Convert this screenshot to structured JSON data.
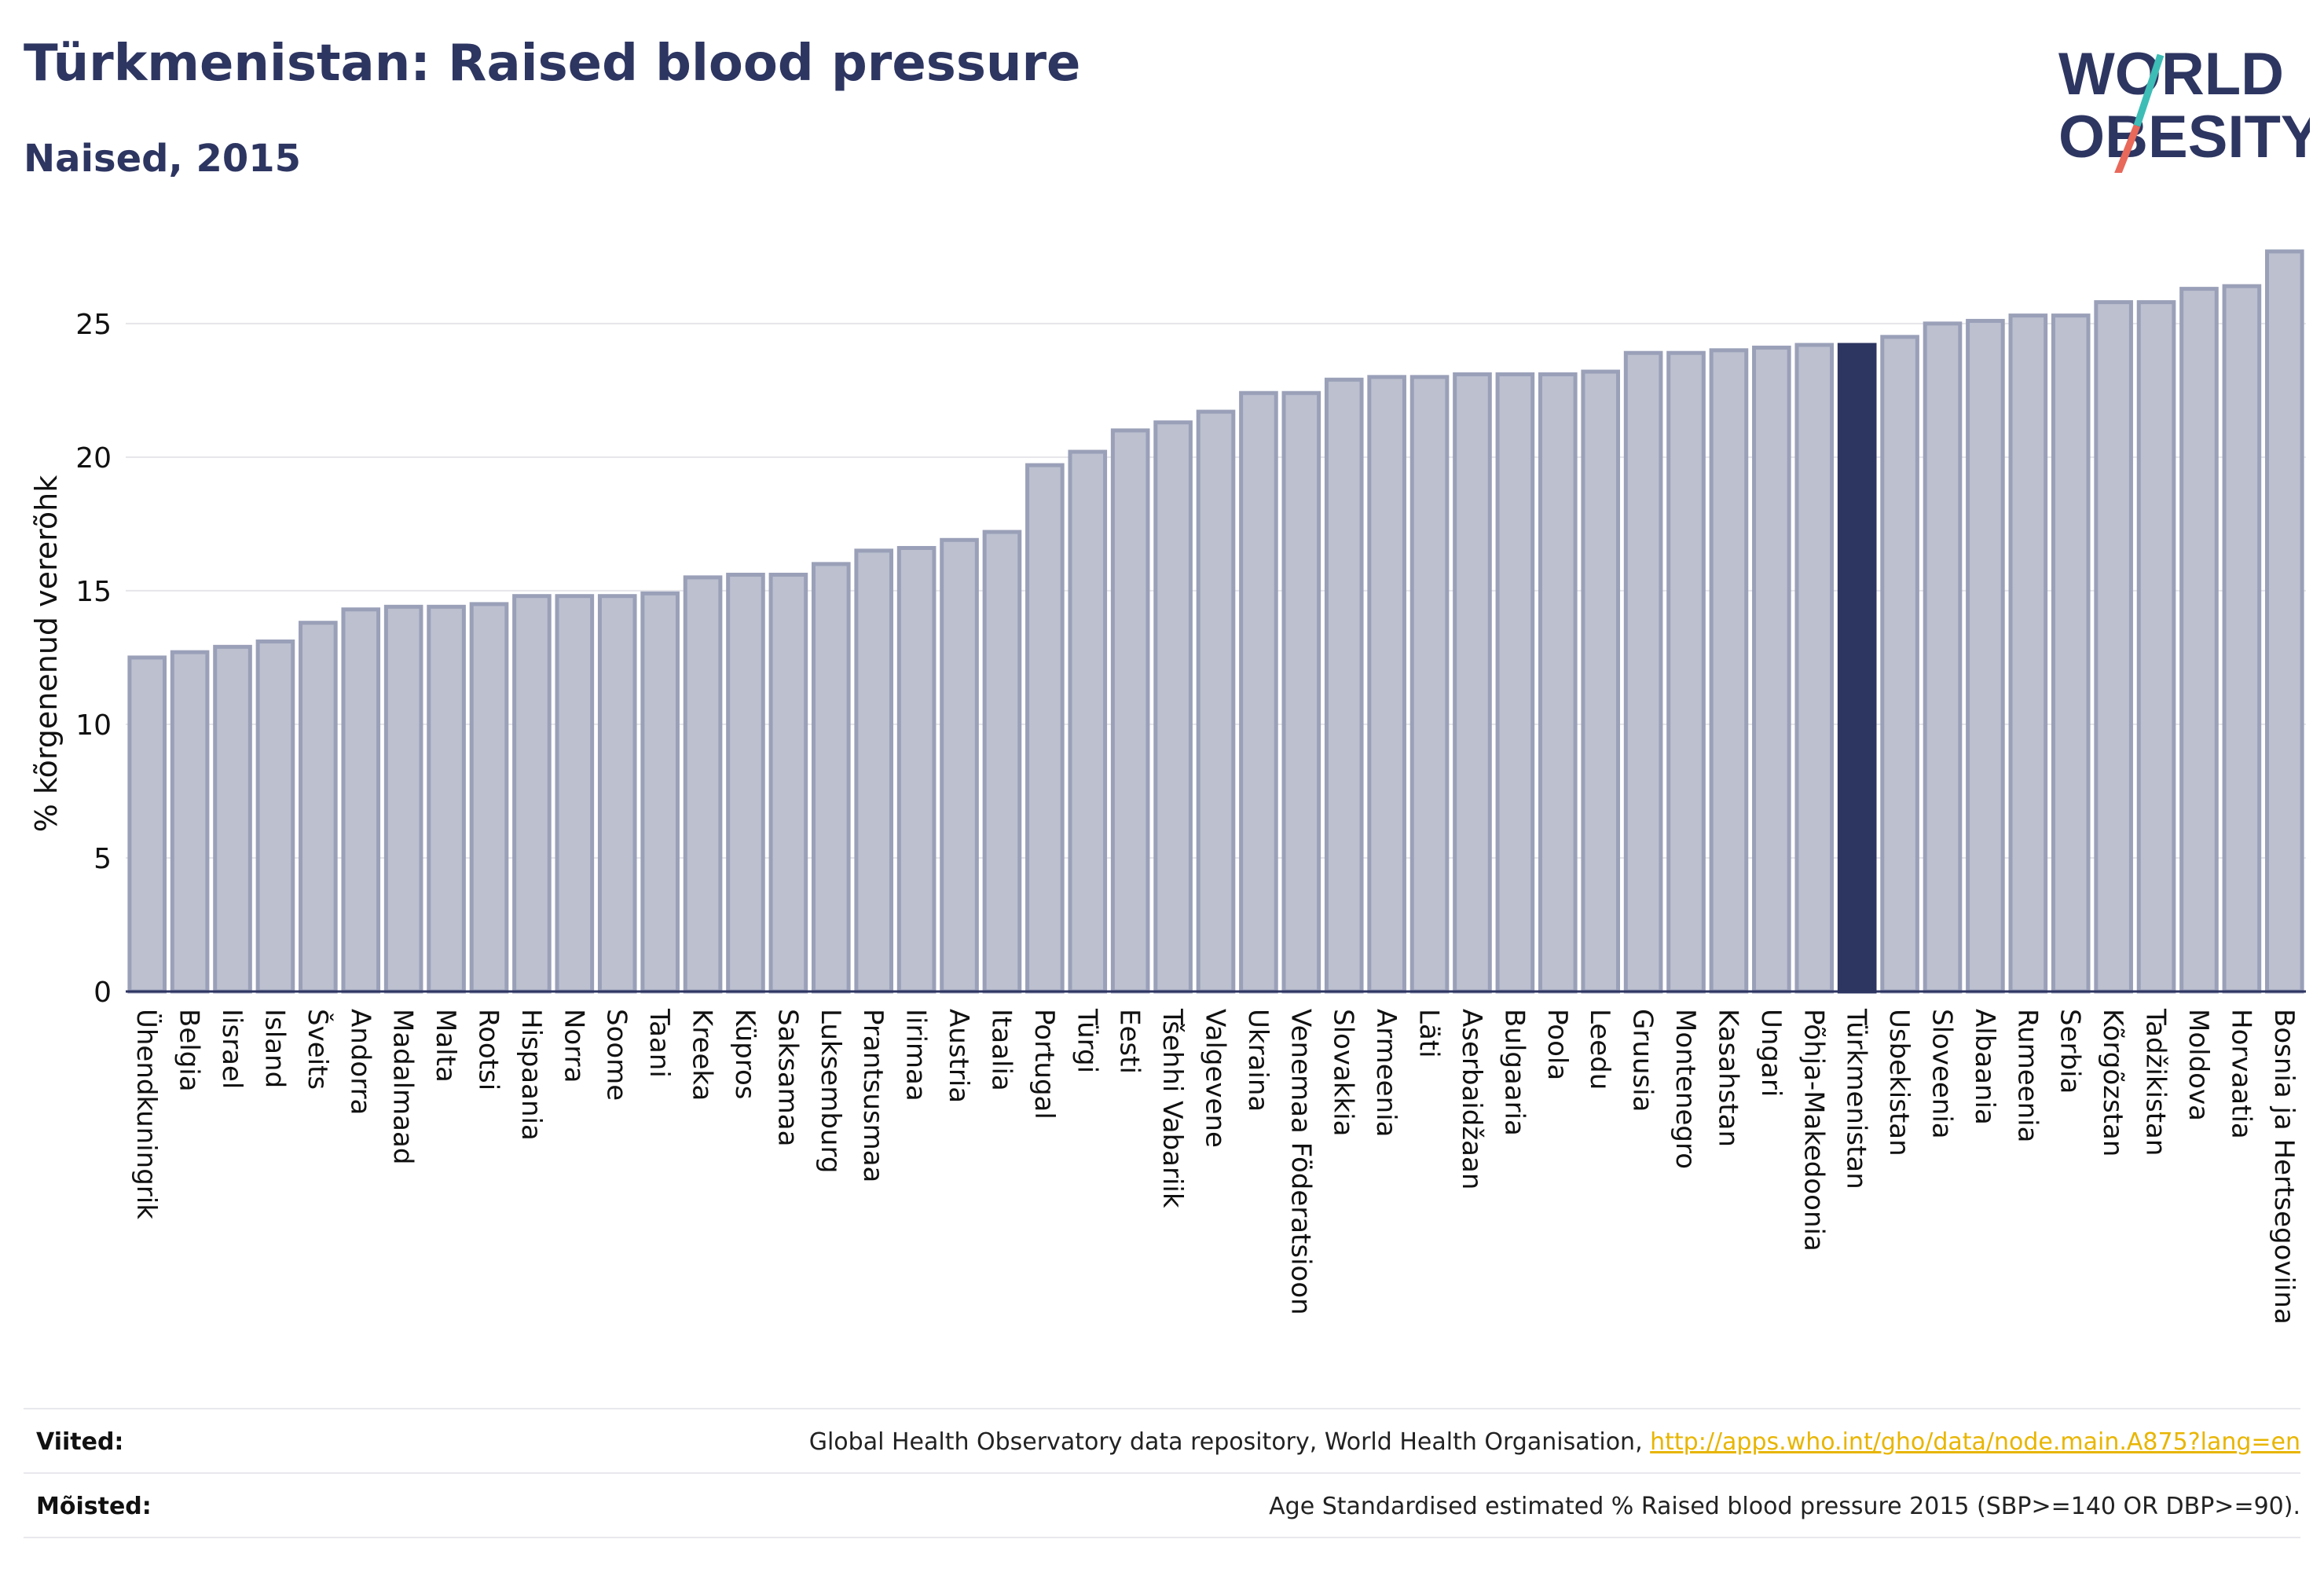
{
  "header": {
    "title": "Türkmenistan: Raised blood pressure",
    "subtitle": "Naised, 2015"
  },
  "logo": {
    "line1": "W",
    "line1_rest": "RLD",
    "line2_rest": "BESITY",
    "colors": {
      "text": "#2d3561",
      "slash_teal": "#3dbdb6",
      "slash_coral": "#e8685a"
    }
  },
  "colors": {
    "bar_fill": "#bcc0cf",
    "bar_stroke": "#9aa0b8",
    "highlight": "#2d3561",
    "grid": "#e6e6ea",
    "axis": "#2d3561",
    "text": "#111111"
  },
  "chart_data": {
    "type": "bar",
    "ylabel": "% kõrgenenud vererõhk",
    "ylim": [
      0,
      27.7
    ],
    "yticks": [
      0,
      5,
      10,
      15,
      20,
      25
    ],
    "grid": true,
    "highlight": "Türkmenistan",
    "categories": [
      "Ühendkuningrik",
      "Belgia",
      "Iisrael",
      "Island",
      "Šveits",
      "Andorra",
      "Madalmaad",
      "Malta",
      "Rootsi",
      "Hispaania",
      "Norra",
      "Soome",
      "Taani",
      "Kreeka",
      "Küpros",
      "Saksamaa",
      "Luksemburg",
      "Prantsusmaa",
      "Iirimaa",
      "Austria",
      "Itaalia",
      "Portugal",
      "Türgi",
      "Eesti",
      "Tšehhi Vabariik",
      "Valgevene",
      "Ukraina",
      "Venemaa Föderatsioon",
      "Slovakkia",
      "Armeenia",
      "Läti",
      "Aserbaidžaan",
      "Bulgaaria",
      "Poola",
      "Leedu",
      "Gruusia",
      "Montenegro",
      "Kasahstan",
      "Ungari",
      "Põhja-Makedoonia",
      "Türkmenistan",
      "Usbekistan",
      "Sloveenia",
      "Albaania",
      "Rumeenia",
      "Serbia",
      "Kõrgõzstan",
      "Tadžikistan",
      "Moldova",
      "Horvaatia",
      "Bosnia ja Hertsegoviina"
    ],
    "values": [
      12.5,
      12.7,
      12.9,
      13.1,
      13.8,
      14.3,
      14.4,
      14.4,
      14.5,
      14.8,
      14.8,
      14.8,
      14.9,
      15.5,
      15.6,
      15.6,
      16.0,
      16.5,
      16.6,
      16.9,
      17.2,
      19.7,
      20.2,
      21.0,
      21.3,
      21.7,
      22.4,
      22.4,
      22.9,
      23.0,
      23.0,
      23.1,
      23.1,
      23.1,
      23.2,
      23.9,
      23.9,
      24.0,
      24.1,
      24.2,
      24.2,
      24.5,
      25.0,
      25.1,
      25.3,
      25.3,
      25.8,
      25.8,
      26.3,
      26.4,
      27.7
    ]
  },
  "footer": {
    "sources_label": "Viited:",
    "sources_text": "Global Health Observatory data repository, World Health Organisation, ",
    "sources_link": "http://apps.who.int/gho/data/node.main.A875?lang=en",
    "definitions_label": "Mõisted:",
    "definitions_text": "Age Standardised estimated % Raised blood pressure 2015 (SBP>=140 OR DBP>=90)."
  }
}
